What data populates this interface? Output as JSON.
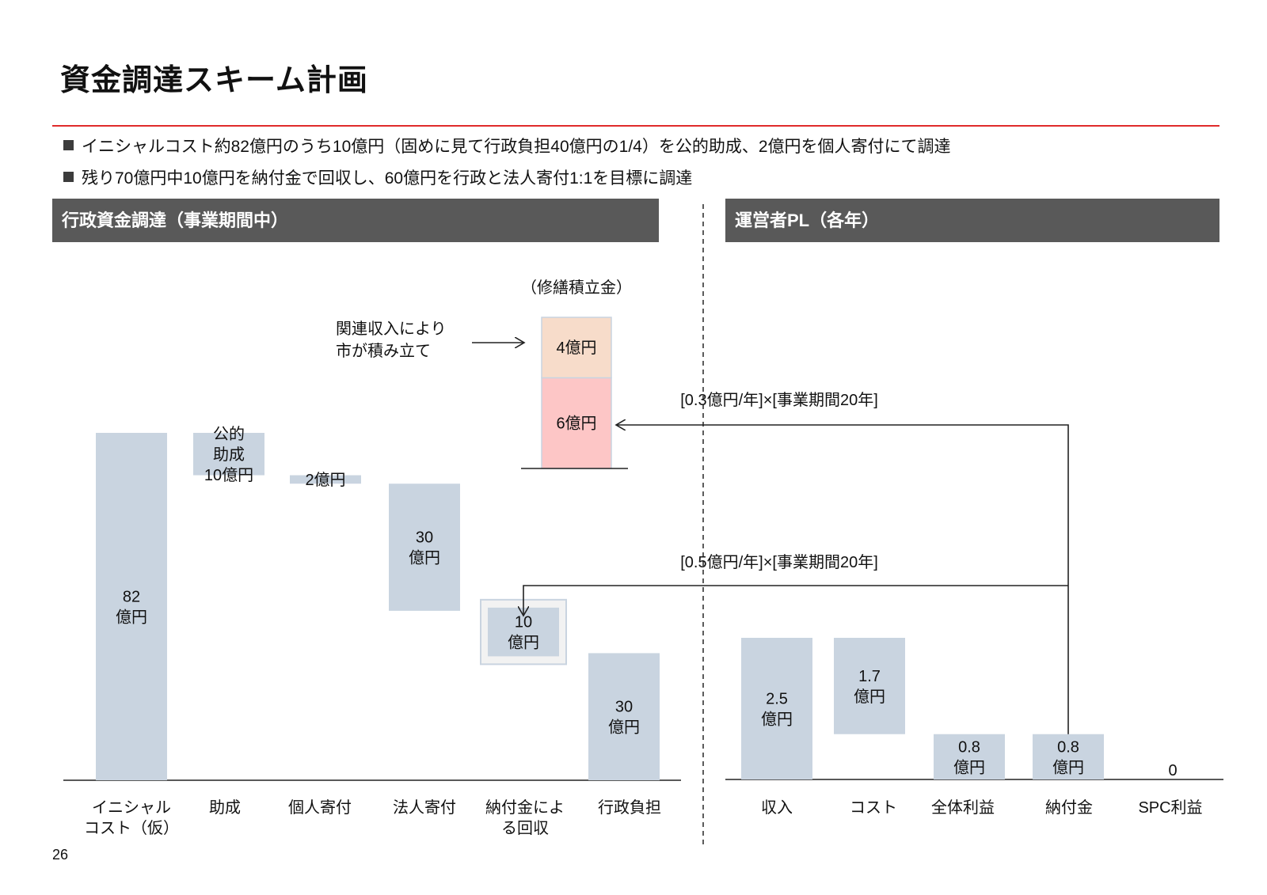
{
  "slide": {
    "title": "資金調達スキーム計画",
    "bullets": [
      "イニシャルコスト約82億円のうち10億円（固めに見て行政負担40億円の1/4）を公的助成、2億円を個人寄付にて調達",
      "残り70億円中10億円を納付金で回収し、60億円を行政と法人寄付1:1を目標に調達"
    ],
    "left_section_title": "行政資金調達（事業期間中）",
    "right_section_title": "運営者PL（各年）",
    "page_number": "26"
  },
  "colors": {
    "accent_rule": "#e02b2b",
    "header_bg": "#595959",
    "bar": "#c9d4e0",
    "fund_upper": "#f7dcca",
    "fund_lower": "#fdc6c6",
    "box_border": "#c9d4e0"
  },
  "annotations": {
    "fund_caption": "（修繕積立金）",
    "city_note_line1": "関連収入により",
    "city_note_line2": "市が積み立て",
    "arrow_upper": "[0.3億円/年]×[事業期間20年]",
    "arrow_lower": "[0.5億円/年]×[事業期間20年]"
  },
  "chart_data": [
    {
      "type": "bar",
      "subtype": "waterfall",
      "title": "行政資金調達（事業期間中）",
      "unit": "億円",
      "categories": [
        "イニシャル\nコスト（仮）",
        "助成",
        "個人寄付",
        "法人寄付",
        "納付金によ\nる回収",
        "行政負担"
      ],
      "values": [
        82,
        10,
        2,
        30,
        10,
        30
      ],
      "value_labels": [
        "82\n億円",
        "公的\n助成\n10億円",
        "2億円",
        "30\n億円",
        "10\n億円",
        "30\n億円"
      ],
      "stacked_fund": {
        "caption": "（修繕積立金）",
        "segments": [
          {
            "value": 4,
            "label": "4億円"
          },
          {
            "value": 6,
            "label": "6億円"
          }
        ]
      }
    },
    {
      "type": "bar",
      "subtype": "waterfall",
      "title": "運営者PL（各年）",
      "unit": "億円",
      "categories": [
        "収入",
        "コスト",
        "全体利益",
        "納付金",
        "SPC利益"
      ],
      "values": [
        2.5,
        1.7,
        0.8,
        0.8,
        0
      ],
      "value_labels": [
        "2.5\n億円",
        "1.7\n億円",
        "0.8\n億円",
        "0.8\n億円",
        "0"
      ]
    }
  ]
}
